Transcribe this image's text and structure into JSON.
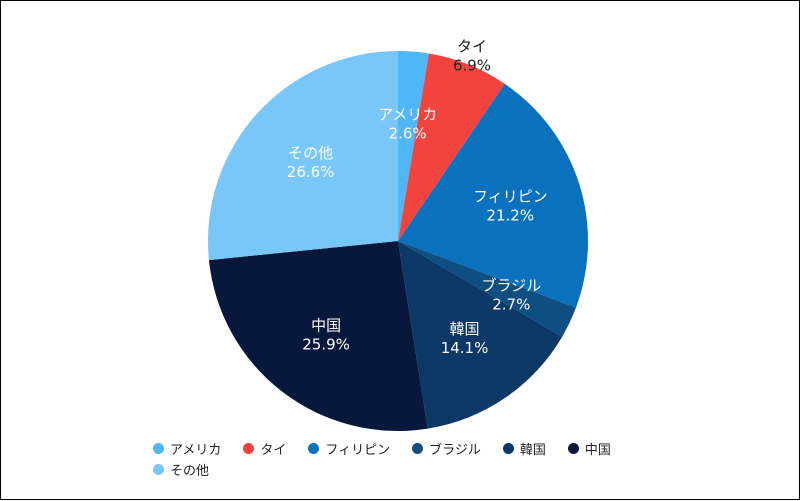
{
  "chart_data": {
    "type": "pie",
    "title": "",
    "legend_position": "bottom",
    "start_angle_deg": 0,
    "direction": "clockwise",
    "slices": [
      {
        "label": "アメリカ",
        "value": 2.6,
        "display": "2.6%",
        "color": "#4fb7f5"
      },
      {
        "label": "タイ",
        "value": 6.9,
        "display": "6.9%",
        "color": "#f2433f"
      },
      {
        "label": "フィリピン",
        "value": 21.2,
        "display": "21.2%",
        "color": "#0a72bd"
      },
      {
        "label": "ブラジル",
        "value": 2.7,
        "display": "2.7%",
        "color": "#0e4e80"
      },
      {
        "label": "韓国",
        "value": 14.1,
        "display": "14.1%",
        "color": "#0b3866"
      },
      {
        "label": "中国",
        "value": 25.9,
        "display": "25.9%",
        "color": "#07183c"
      },
      {
        "label": "その他",
        "value": 26.6,
        "display": "26.6%",
        "color": "#79c6f8"
      }
    ]
  }
}
